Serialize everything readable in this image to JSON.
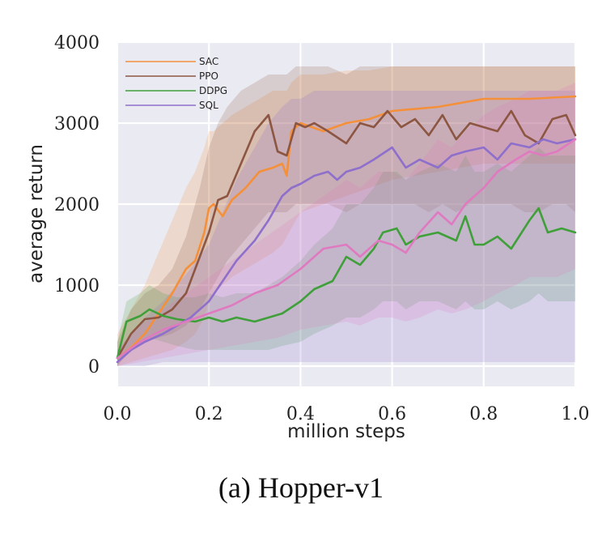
{
  "chart_data": {
    "type": "line",
    "caption": "(a) Hopper-v1",
    "xlabel": "million steps",
    "ylabel": "average return",
    "xlim": [
      0.0,
      1.0
    ],
    "ylim": [
      -250,
      4000
    ],
    "xticks": [
      0.0,
      0.2,
      0.4,
      0.6,
      0.8,
      1.0
    ],
    "xtick_labels": [
      "0.0",
      "0.2",
      "0.4",
      "0.6",
      "0.8",
      "1.0"
    ],
    "yticks": [
      0,
      1000,
      2000,
      3000,
      4000
    ],
    "ytick_labels": [
      "0",
      "1000",
      "2000",
      "3000",
      "4000"
    ],
    "grid": true,
    "legend_position": "top-left",
    "series": [
      {
        "name": "SAC",
        "color": "#f5903a",
        "x": [
          0.0,
          0.03,
          0.06,
          0.09,
          0.12,
          0.15,
          0.17,
          0.19,
          0.2,
          0.21,
          0.23,
          0.25,
          0.28,
          0.31,
          0.34,
          0.36,
          0.37,
          0.38,
          0.4,
          0.45,
          0.5,
          0.55,
          0.6,
          0.7,
          0.8,
          0.9,
          1.0
        ],
        "y": [
          100,
          230,
          400,
          650,
          900,
          1200,
          1300,
          1650,
          1950,
          2000,
          1850,
          2050,
          2200,
          2400,
          2450,
          2500,
          2350,
          2900,
          3000,
          2900,
          3000,
          3050,
          3150,
          3200,
          3300,
          3300,
          3330
        ],
        "band_low": [
          0,
          50,
          100,
          150,
          200,
          300,
          400,
          600,
          800,
          900,
          1000,
          1100,
          1200,
          1300,
          1400,
          1500,
          1600,
          1700,
          1900,
          2000,
          2100,
          2200,
          2300,
          2400,
          2500,
          2500,
          2500
        ],
        "band_high": [
          400,
          700,
          1000,
          1400,
          1800,
          2200,
          2400,
          2700,
          2900,
          2900,
          3000,
          3100,
          3200,
          3300,
          3400,
          3400,
          3400,
          3500,
          3600,
          3600,
          3650,
          3650,
          3700,
          3700,
          3700,
          3700,
          3700
        ]
      },
      {
        "name": "PPO",
        "color": "#8c5642",
        "x": [
          0.0,
          0.03,
          0.06,
          0.09,
          0.12,
          0.15,
          0.18,
          0.2,
          0.22,
          0.24,
          0.27,
          0.3,
          0.33,
          0.35,
          0.37,
          0.39,
          0.41,
          0.43,
          0.46,
          0.5,
          0.53,
          0.56,
          0.59,
          0.62,
          0.65,
          0.68,
          0.71,
          0.74,
          0.77,
          0.8,
          0.83,
          0.86,
          0.89,
          0.92,
          0.95,
          0.98,
          1.0
        ],
        "y": [
          100,
          400,
          580,
          600,
          700,
          900,
          1350,
          1650,
          2050,
          2100,
          2500,
          2900,
          3100,
          2650,
          2600,
          3000,
          2950,
          3000,
          2900,
          2750,
          3000,
          2950,
          3150,
          2950,
          3050,
          2850,
          3100,
          2800,
          3000,
          2950,
          2900,
          3150,
          2850,
          2750,
          3050,
          3100,
          2850
        ],
        "band_low": [
          0,
          200,
          300,
          350,
          400,
          500,
          700,
          900,
          1100,
          1300,
          1500,
          1700,
          1900,
          1900,
          1900,
          2000,
          2000,
          2000,
          2000,
          1900,
          2000,
          2000,
          2000,
          2000,
          2000,
          1900,
          2000,
          1900,
          2000,
          2000,
          2000,
          2000,
          1900,
          1900,
          2000,
          2000,
          1900
        ],
        "band_high": [
          300,
          700,
          900,
          1000,
          1200,
          1600,
          2200,
          2700,
          3000,
          3200,
          3400,
          3500,
          3600,
          3600,
          3600,
          3700,
          3700,
          3700,
          3700,
          3600,
          3700,
          3700,
          3700,
          3700,
          3700,
          3700,
          3700,
          3700,
          3700,
          3700,
          3700,
          3700,
          3700,
          3700,
          3700,
          3700,
          3700
        ]
      },
      {
        "name": "DDPG",
        "color": "#3fa03a",
        "x": [
          0.0,
          0.02,
          0.05,
          0.07,
          0.1,
          0.13,
          0.17,
          0.2,
          0.23,
          0.26,
          0.3,
          0.33,
          0.36,
          0.4,
          0.43,
          0.47,
          0.5,
          0.53,
          0.56,
          0.58,
          0.61,
          0.63,
          0.66,
          0.7,
          0.74,
          0.76,
          0.78,
          0.8,
          0.83,
          0.86,
          0.9,
          0.92,
          0.94,
          0.97,
          1.0
        ],
        "y": [
          100,
          550,
          620,
          700,
          620,
          580,
          550,
          600,
          550,
          600,
          550,
          600,
          650,
          800,
          950,
          1050,
          1350,
          1250,
          1450,
          1650,
          1700,
          1500,
          1600,
          1650,
          1550,
          1850,
          1500,
          1500,
          1600,
          1450,
          1800,
          1950,
          1650,
          1700,
          1650
        ],
        "band_low": [
          0,
          200,
          300,
          350,
          300,
          250,
          200,
          200,
          200,
          200,
          200,
          200,
          250,
          300,
          400,
          500,
          600,
          600,
          700,
          800,
          800,
          700,
          800,
          800,
          700,
          800,
          700,
          700,
          800,
          700,
          800,
          900,
          800,
          800,
          800
        ],
        "band_high": [
          300,
          800,
          900,
          1000,
          900,
          850,
          850,
          900,
          850,
          900,
          900,
          1000,
          1100,
          1300,
          1500,
          1700,
          2000,
          2000,
          2200,
          2400,
          2400,
          2300,
          2400,
          2500,
          2400,
          2600,
          2400,
          2400,
          2500,
          2400,
          2600,
          2700,
          2600,
          2600,
          2600
        ]
      },
      {
        "name": "SQL",
        "color": "#8e6fcc",
        "x": [
          0.0,
          0.03,
          0.06,
          0.1,
          0.13,
          0.16,
          0.2,
          0.23,
          0.26,
          0.3,
          0.33,
          0.36,
          0.38,
          0.4,
          0.43,
          0.46,
          0.48,
          0.5,
          0.53,
          0.56,
          0.6,
          0.63,
          0.66,
          0.7,
          0.73,
          0.76,
          0.8,
          0.83,
          0.86,
          0.9,
          0.93,
          0.96,
          1.0
        ],
        "y": [
          50,
          200,
          300,
          400,
          500,
          600,
          800,
          1050,
          1300,
          1550,
          1800,
          2100,
          2200,
          2250,
          2350,
          2400,
          2300,
          2400,
          2450,
          2550,
          2700,
          2450,
          2550,
          2450,
          2600,
          2650,
          2700,
          2550,
          2750,
          2700,
          2800,
          2750,
          2800
        ],
        "band_low": [
          0,
          0,
          0,
          50,
          50,
          50,
          50,
          50,
          50,
          50,
          50,
          50,
          50,
          50,
          50,
          50,
          50,
          50,
          50,
          50,
          50,
          50,
          50,
          50,
          50,
          50,
          50,
          50,
          50,
          50,
          50,
          50,
          50
        ],
        "band_high": [
          200,
          400,
          600,
          800,
          1000,
          1200,
          1500,
          1900,
          2300,
          2700,
          3000,
          3200,
          3300,
          3300,
          3400,
          3400,
          3400,
          3400,
          3400,
          3400,
          3400,
          3400,
          3400,
          3400,
          3400,
          3400,
          3400,
          3400,
          3400,
          3400,
          3400,
          3400,
          3400
        ]
      },
      {
        "name": "",
        "color": "#e07ac0",
        "x": [
          0.0,
          0.05,
          0.1,
          0.15,
          0.2,
          0.25,
          0.3,
          0.35,
          0.4,
          0.45,
          0.5,
          0.53,
          0.57,
          0.6,
          0.63,
          0.66,
          0.7,
          0.73,
          0.76,
          0.8,
          0.83,
          0.87,
          0.9,
          0.93,
          0.96,
          1.0
        ],
        "y": [
          100,
          300,
          450,
          550,
          650,
          750,
          900,
          1000,
          1200,
          1450,
          1500,
          1350,
          1550,
          1500,
          1400,
          1650,
          1900,
          1750,
          2000,
          2200,
          2400,
          2550,
          2650,
          2600,
          2650,
          2800
        ],
        "band_low": [
          0,
          50,
          100,
          150,
          200,
          250,
          300,
          350,
          450,
          500,
          550,
          500,
          600,
          600,
          550,
          600,
          700,
          650,
          700,
          800,
          900,
          1000,
          1100,
          1100,
          1100,
          1200
        ],
        "band_high": [
          200,
          500,
          700,
          900,
          1100,
          1300,
          1500,
          1700,
          1900,
          2100,
          2300,
          2200,
          2400,
          2400,
          2300,
          2500,
          2800,
          2700,
          2900,
          3100,
          3200,
          3300,
          3400,
          3400,
          3400,
          3500
        ]
      }
    ]
  }
}
